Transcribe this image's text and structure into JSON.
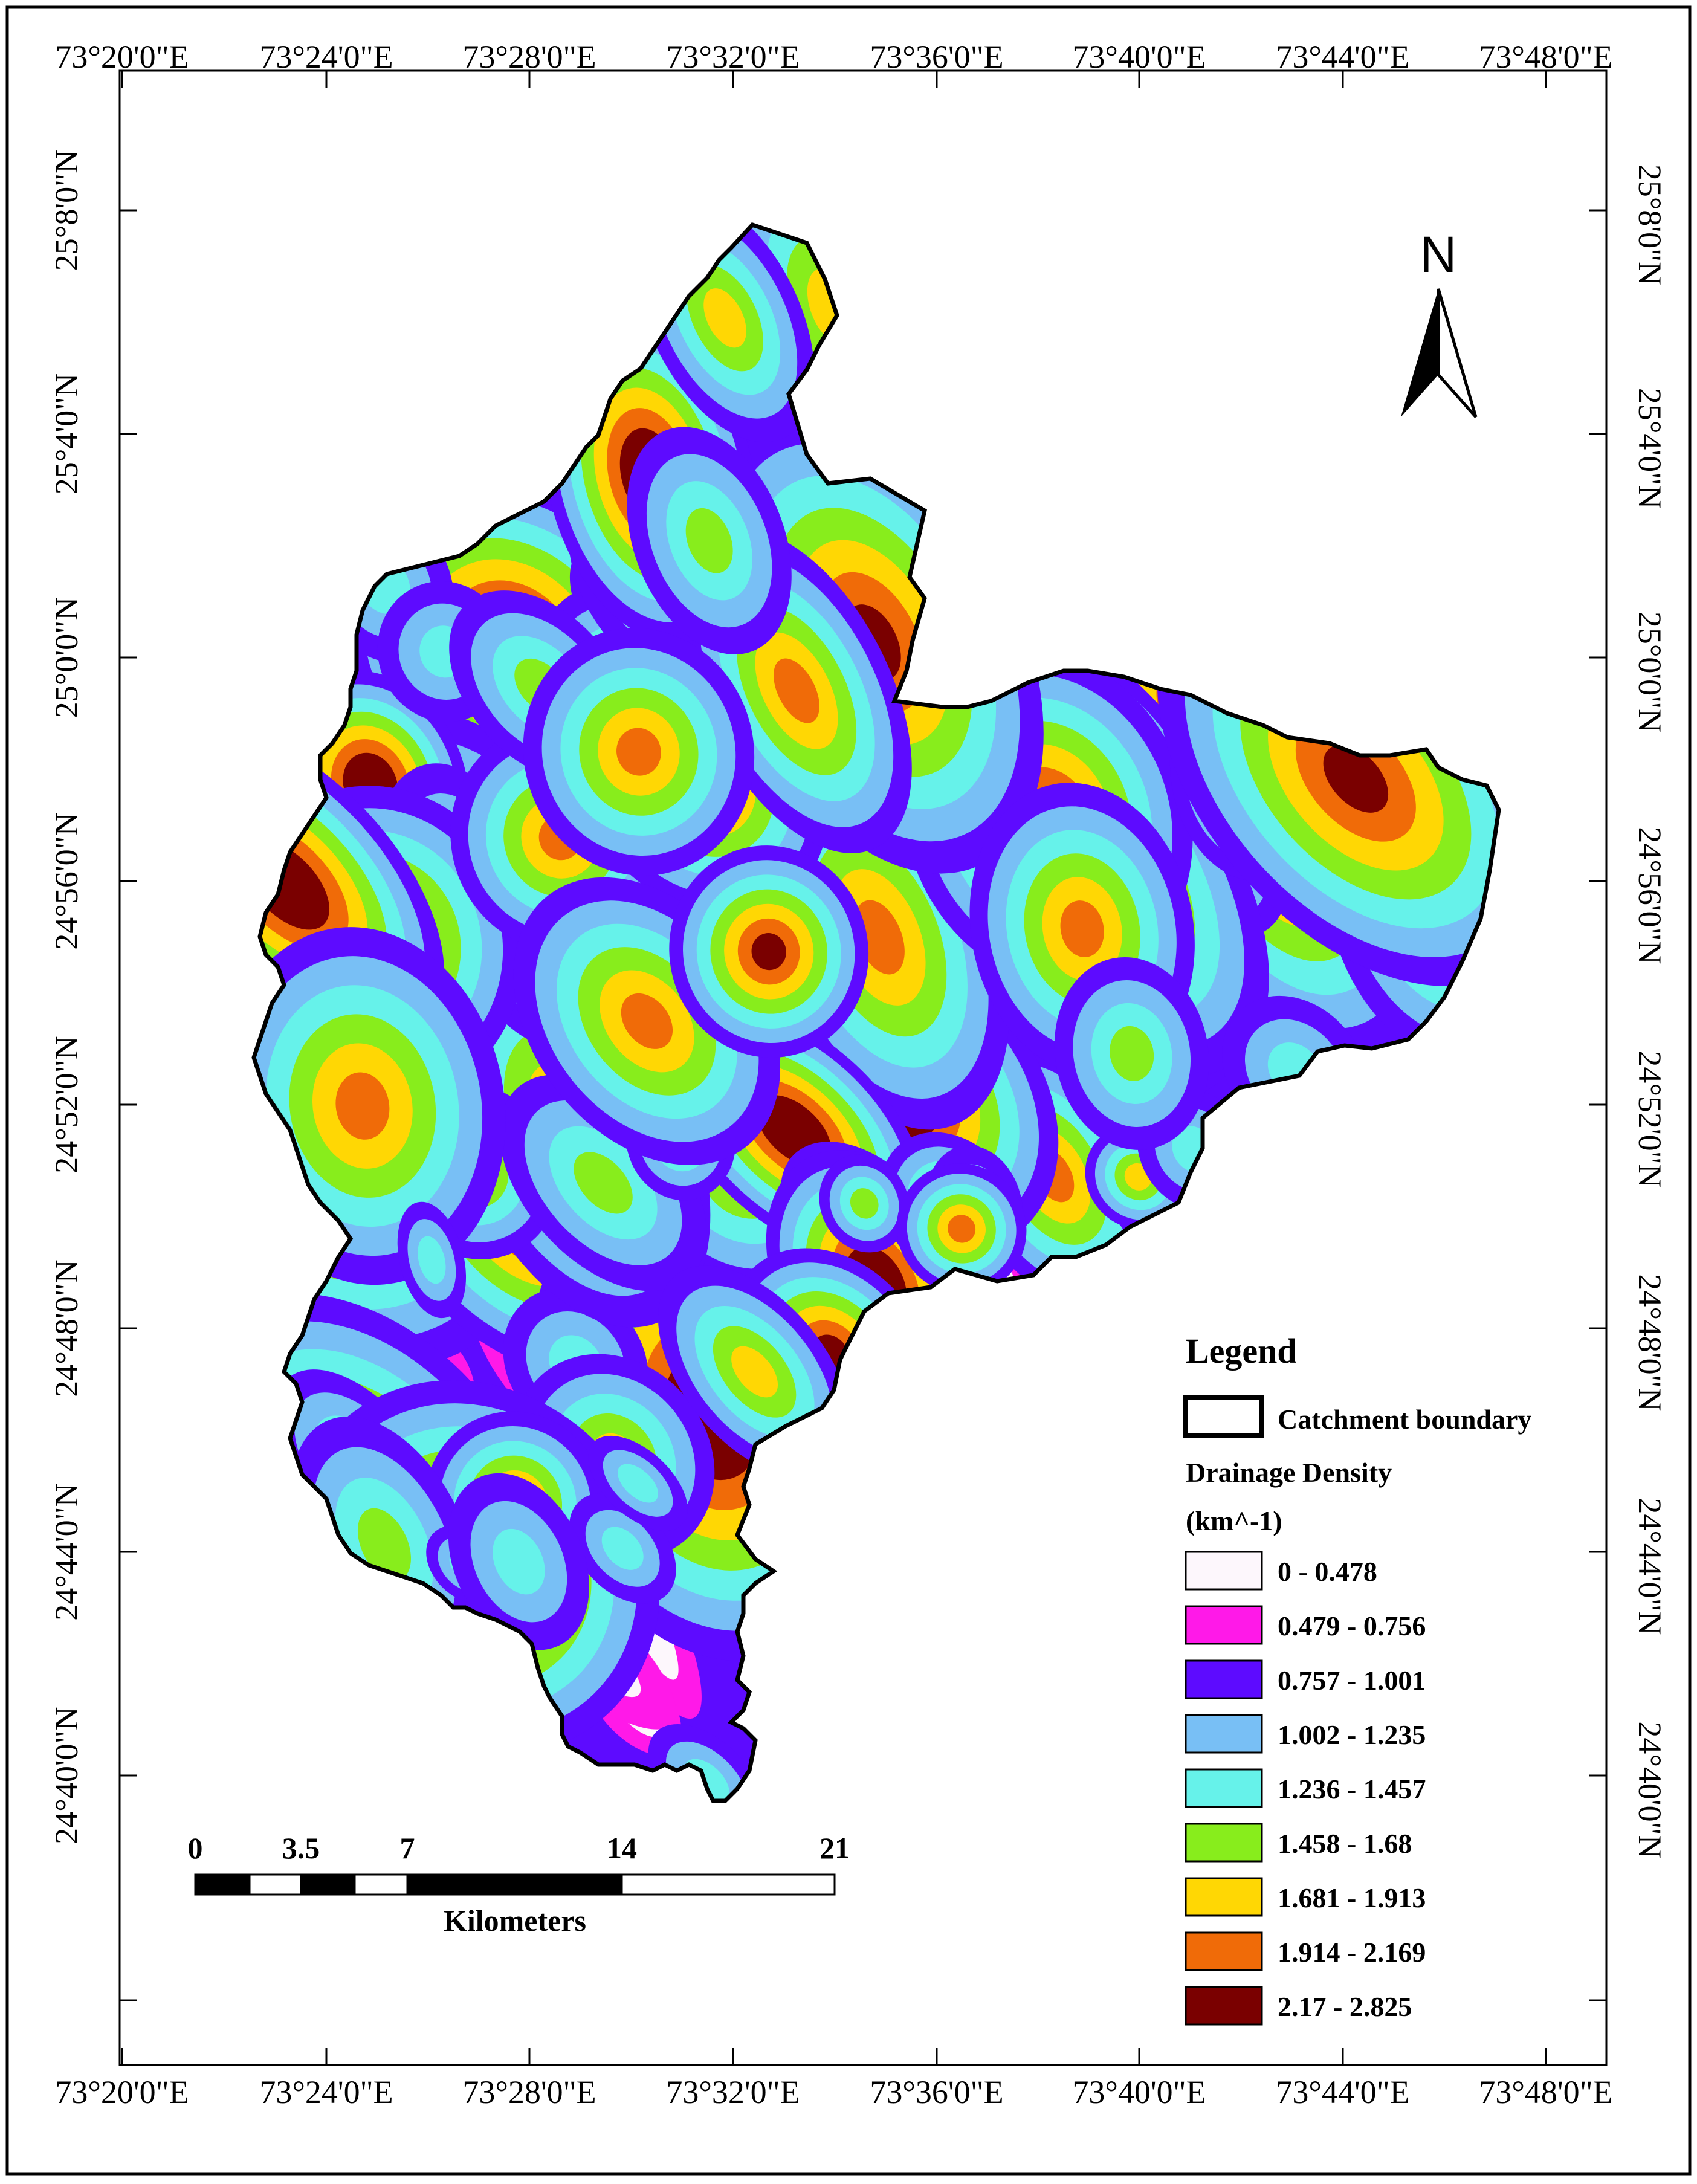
{
  "map": {
    "top_longitude_labels": [
      "73°20'0\"E",
      "73°24'0\"E",
      "73°28'0\"E",
      "73°32'0\"E",
      "73°36'0\"E",
      "73°40'0\"E",
      "73°44'0\"E",
      "73°48'0\"E"
    ],
    "bottom_longitude_labels": [
      "73°20'0\"E",
      "73°24'0\"E",
      "73°28'0\"E",
      "73°32'0\"E",
      "73°36'0\"E",
      "73°40'0\"E",
      "73°44'0\"E",
      "73°48'0\"E"
    ],
    "left_latitude_labels": [
      "25°8'0\"N",
      "25°4'0\"N",
      "25°0'0\"N",
      "24°56'0\"N",
      "24°52'0\"N",
      "24°48'0\"N",
      "24°44'0\"N",
      "24°40'0\"N"
    ],
    "right_latitude_labels": [
      "25°8'0\"N",
      "25°4'0\"N",
      "25°0'0\"N",
      "24°56'0\"N",
      "24°52'0\"N",
      "24°48'0\"N",
      "24°44'0\"N",
      "24°40'0\"N"
    ],
    "north_label": "N"
  },
  "legend": {
    "title": "Legend",
    "boundary_label": "Catchment boundary",
    "density_title": "Drainage Density",
    "density_unit": "(km^-1)",
    "classes": [
      {
        "label": "0 - 0.478",
        "color": "#fdf7fc"
      },
      {
        "label": "0.479 - 0.756",
        "color": "#ff19e8"
      },
      {
        "label": "0.757 - 1.001",
        "color": "#5d0bff"
      },
      {
        "label": "1.002 - 1.235",
        "color": "#78bff5"
      },
      {
        "label": "1.236 - 1.457",
        "color": "#66f2ea"
      },
      {
        "label": "1.458 - 1.68",
        "color": "#88ed1c"
      },
      {
        "label": "1.681 - 1.913",
        "color": "#ffd704"
      },
      {
        "label": "1.914 - 2.169",
        "color": "#f06b08"
      },
      {
        "label": "2.17 - 2.825",
        "color": "#7a0000"
      }
    ]
  },
  "scale_bar": {
    "ticks": [
      "0",
      "3.5",
      "7",
      "14",
      "21"
    ],
    "unit": "Kilometers"
  }
}
